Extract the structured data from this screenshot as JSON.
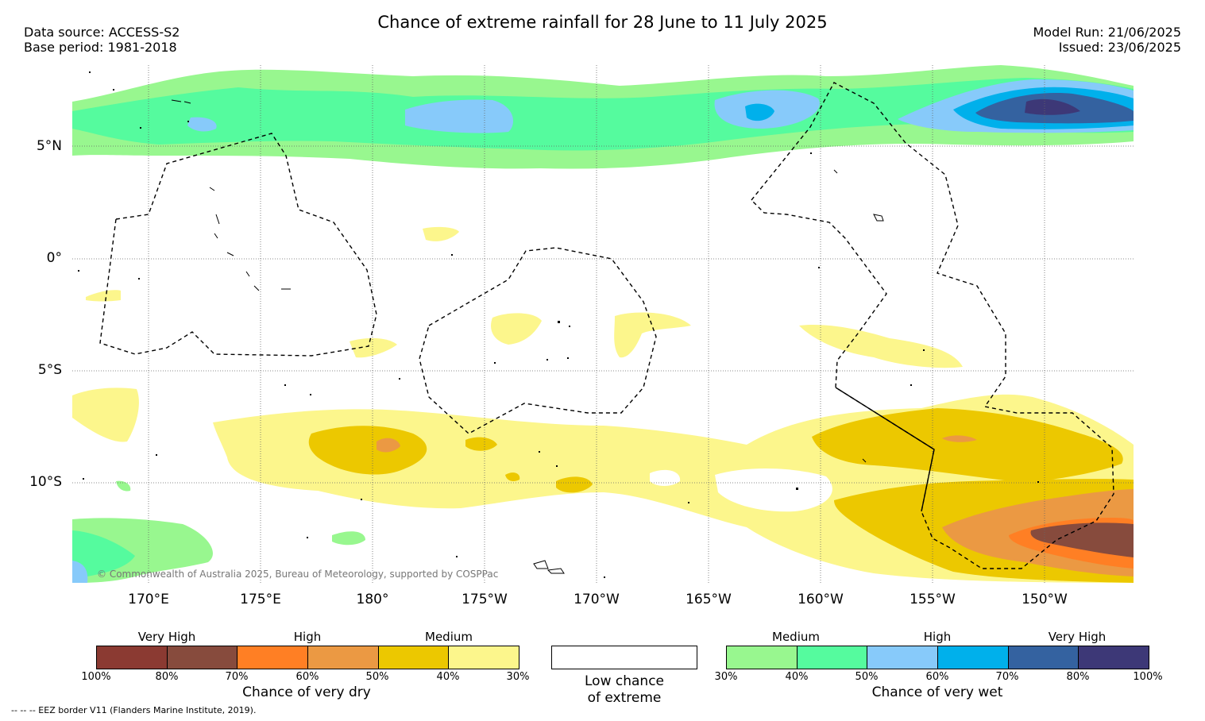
{
  "title": "Chance of extreme rainfall for 28 June to 11 July 2025",
  "meta": {
    "data_source": "Data source: ACCESS-S2",
    "base_period": "Base period: 1981-2018",
    "model_run": "Model Run: 21/06/2025",
    "issued": "Issued: 23/06/2025"
  },
  "map": {
    "lat_labels": [
      "5°N",
      "0°",
      "5°S",
      "10°S"
    ],
    "lon_labels": [
      "170°E",
      "175°E",
      "180°",
      "175°W",
      "170°W",
      "165°W",
      "160°W",
      "155°W",
      "150°W"
    ],
    "copyright": "© Commonwealth of Australia 2025, Bureau of Meteorology, supported by COSPPac",
    "eez_note": "-- -- -- EEZ border V11 (Flanders Marine Institute, 2019)."
  },
  "legend": {
    "dry": {
      "label": "Chance of very dry",
      "categories": [
        "Very High",
        "High",
        "Medium"
      ],
      "ticks": [
        "100%",
        "80%",
        "70%",
        "60%",
        "50%",
        "40%",
        "30%"
      ],
      "colors": [
        "#8b3a32",
        "#874b3d",
        "#ff7f24",
        "#eb9943",
        "#ecc800",
        "#fcf68c"
      ]
    },
    "neutral": {
      "label_line1": "Low chance",
      "label_line2": "of extreme",
      "color": "#ffffff"
    },
    "wet": {
      "label": "Chance of very wet",
      "categories": [
        "Medium",
        "High",
        "Very High"
      ],
      "ticks": [
        "30%",
        "40%",
        "50%",
        "60%",
        "70%",
        "80%",
        "100%"
      ],
      "colors": [
        "#98f78f",
        "#55fb9e",
        "#87cafa",
        "#00b0eb",
        "#3462a0",
        "#3d3877"
      ]
    }
  }
}
